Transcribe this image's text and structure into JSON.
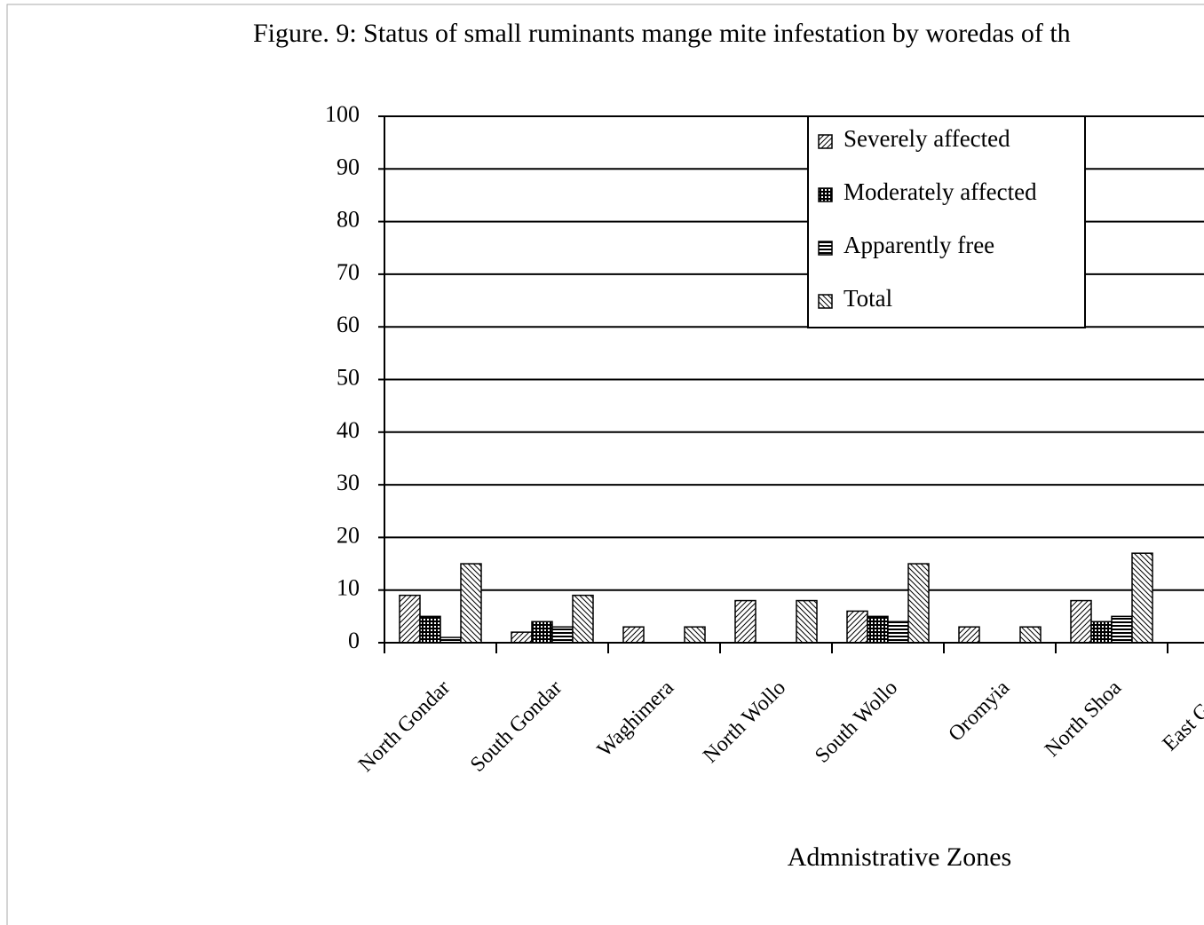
{
  "chart_data": {
    "type": "bar",
    "title": "Figure. 9: Status of small ruminants mange mite infestation by woredas of th",
    "x_label": "Admnistrative Zones",
    "categories": [
      "North Gondar",
      "South Gondar",
      "Waghimera",
      "North Wollo",
      "South Wollo",
      "Oromyia",
      "North Shoa",
      "East Gojja"
    ],
    "series": [
      {
        "name": "Severely affected",
        "color": "#000000",
        "values": [
          9,
          2,
          3,
          8,
          6,
          3,
          8,
          null
        ]
      },
      {
        "name": "Moderately affected",
        "color": "#000000",
        "values": [
          5,
          4,
          0,
          0,
          5,
          0,
          4,
          null
        ]
      },
      {
        "name": "Apparently free",
        "color": "#000000",
        "values": [
          1,
          3,
          0,
          0,
          4,
          0,
          5,
          null
        ]
      },
      {
        "name": "Total",
        "color": "#000000",
        "values": [
          15,
          9,
          3,
          8,
          15,
          3,
          17,
          null
        ]
      }
    ],
    "ylim": [
      0,
      100
    ],
    "yticks": [
      0,
      10,
      20,
      30,
      40,
      50,
      60,
      70,
      80,
      90,
      100
    ],
    "grid": true
  }
}
